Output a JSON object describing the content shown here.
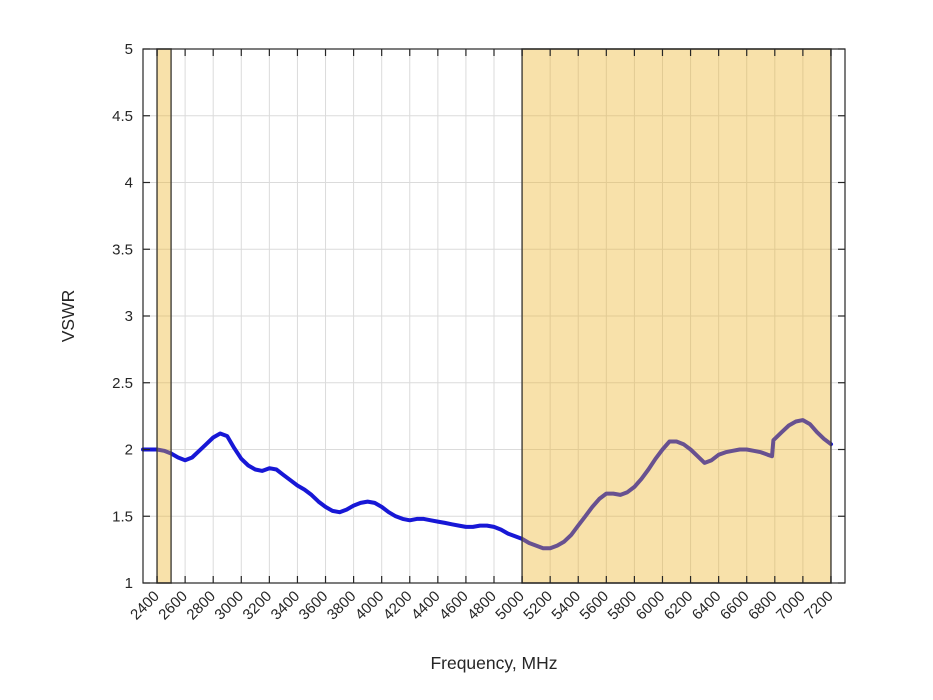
{
  "chart_data": {
    "type": "line",
    "title": "",
    "xlabel": "Frequency, MHz",
    "ylabel": "VSWR",
    "xlim": [
      2300,
      7300
    ],
    "ylim": [
      1,
      5
    ],
    "xticks": [
      2400,
      2600,
      2800,
      3000,
      3200,
      3400,
      3600,
      3800,
      4000,
      4200,
      4400,
      4600,
      4800,
      5000,
      5200,
      5400,
      5600,
      5800,
      6000,
      6200,
      6400,
      6600,
      6800,
      7000,
      7200
    ],
    "yticks": [
      1,
      1.5,
      2,
      2.5,
      3,
      3.5,
      4,
      4.5,
      5
    ],
    "grid": true,
    "legend": "none",
    "series": [
      {
        "name": "VSWR",
        "color": "#1717D6",
        "points": [
          [
            2300,
            2.0
          ],
          [
            2350,
            2.0
          ],
          [
            2400,
            2.0
          ],
          [
            2450,
            1.99
          ],
          [
            2500,
            1.97
          ],
          [
            2550,
            1.94
          ],
          [
            2600,
            1.92
          ],
          [
            2650,
            1.94
          ],
          [
            2700,
            1.99
          ],
          [
            2750,
            2.04
          ],
          [
            2800,
            2.09
          ],
          [
            2850,
            2.12
          ],
          [
            2900,
            2.1
          ],
          [
            2950,
            2.01
          ],
          [
            3000,
            1.93
          ],
          [
            3050,
            1.88
          ],
          [
            3100,
            1.85
          ],
          [
            3150,
            1.84
          ],
          [
            3200,
            1.86
          ],
          [
            3250,
            1.85
          ],
          [
            3300,
            1.81
          ],
          [
            3350,
            1.77
          ],
          [
            3400,
            1.73
          ],
          [
            3450,
            1.7
          ],
          [
            3500,
            1.66
          ],
          [
            3550,
            1.61
          ],
          [
            3600,
            1.57
          ],
          [
            3650,
            1.54
          ],
          [
            3700,
            1.53
          ],
          [
            3750,
            1.55
          ],
          [
            3800,
            1.58
          ],
          [
            3850,
            1.6
          ],
          [
            3900,
            1.61
          ],
          [
            3950,
            1.6
          ],
          [
            4000,
            1.57
          ],
          [
            4050,
            1.53
          ],
          [
            4100,
            1.5
          ],
          [
            4150,
            1.48
          ],
          [
            4200,
            1.47
          ],
          [
            4250,
            1.48
          ],
          [
            4300,
            1.48
          ],
          [
            4350,
            1.47
          ],
          [
            4400,
            1.46
          ],
          [
            4450,
            1.45
          ],
          [
            4500,
            1.44
          ],
          [
            4550,
            1.43
          ],
          [
            4600,
            1.42
          ],
          [
            4650,
            1.42
          ],
          [
            4700,
            1.43
          ],
          [
            4750,
            1.43
          ],
          [
            4800,
            1.42
          ],
          [
            4850,
            1.4
          ],
          [
            4900,
            1.37
          ],
          [
            4950,
            1.35
          ],
          [
            5000,
            1.33
          ],
          [
            5050,
            1.3
          ],
          [
            5100,
            1.28
          ],
          [
            5150,
            1.26
          ],
          [
            5200,
            1.26
          ],
          [
            5250,
            1.28
          ],
          [
            5300,
            1.31
          ],
          [
            5350,
            1.36
          ],
          [
            5400,
            1.43
          ],
          [
            5450,
            1.5
          ],
          [
            5500,
            1.57
          ],
          [
            5550,
            1.63
          ],
          [
            5600,
            1.67
          ],
          [
            5650,
            1.67
          ],
          [
            5700,
            1.66
          ],
          [
            5750,
            1.68
          ],
          [
            5800,
            1.72
          ],
          [
            5850,
            1.78
          ],
          [
            5900,
            1.85
          ],
          [
            5950,
            1.93
          ],
          [
            6000,
            2.0
          ],
          [
            6050,
            2.06
          ],
          [
            6100,
            2.06
          ],
          [
            6150,
            2.04
          ],
          [
            6200,
            2.0
          ],
          [
            6250,
            1.95
          ],
          [
            6300,
            1.9
          ],
          [
            6350,
            1.92
          ],
          [
            6400,
            1.96
          ],
          [
            6450,
            1.98
          ],
          [
            6500,
            1.99
          ],
          [
            6550,
            2.0
          ],
          [
            6600,
            2.0
          ],
          [
            6650,
            1.99
          ],
          [
            6700,
            1.98
          ],
          [
            6750,
            1.96
          ],
          [
            6780,
            1.95
          ],
          [
            6790,
            2.07
          ],
          [
            6850,
            2.13
          ],
          [
            6900,
            2.18
          ],
          [
            6950,
            2.21
          ],
          [
            7000,
            2.22
          ],
          [
            7050,
            2.19
          ],
          [
            7100,
            2.13
          ],
          [
            7150,
            2.08
          ],
          [
            7200,
            2.04
          ]
        ]
      }
    ],
    "bands": [
      {
        "from": 2400,
        "to": 2500
      },
      {
        "from": 5000,
        "to": 7200
      }
    ],
    "colors": {
      "band_fill": "#EDB120",
      "band_fill_alpha": 0.38,
      "band_edge": "#3E3C36",
      "grid": "#DBDBDB",
      "frame": "#262626",
      "text": "#262626",
      "background": "#FFFFFF"
    }
  }
}
